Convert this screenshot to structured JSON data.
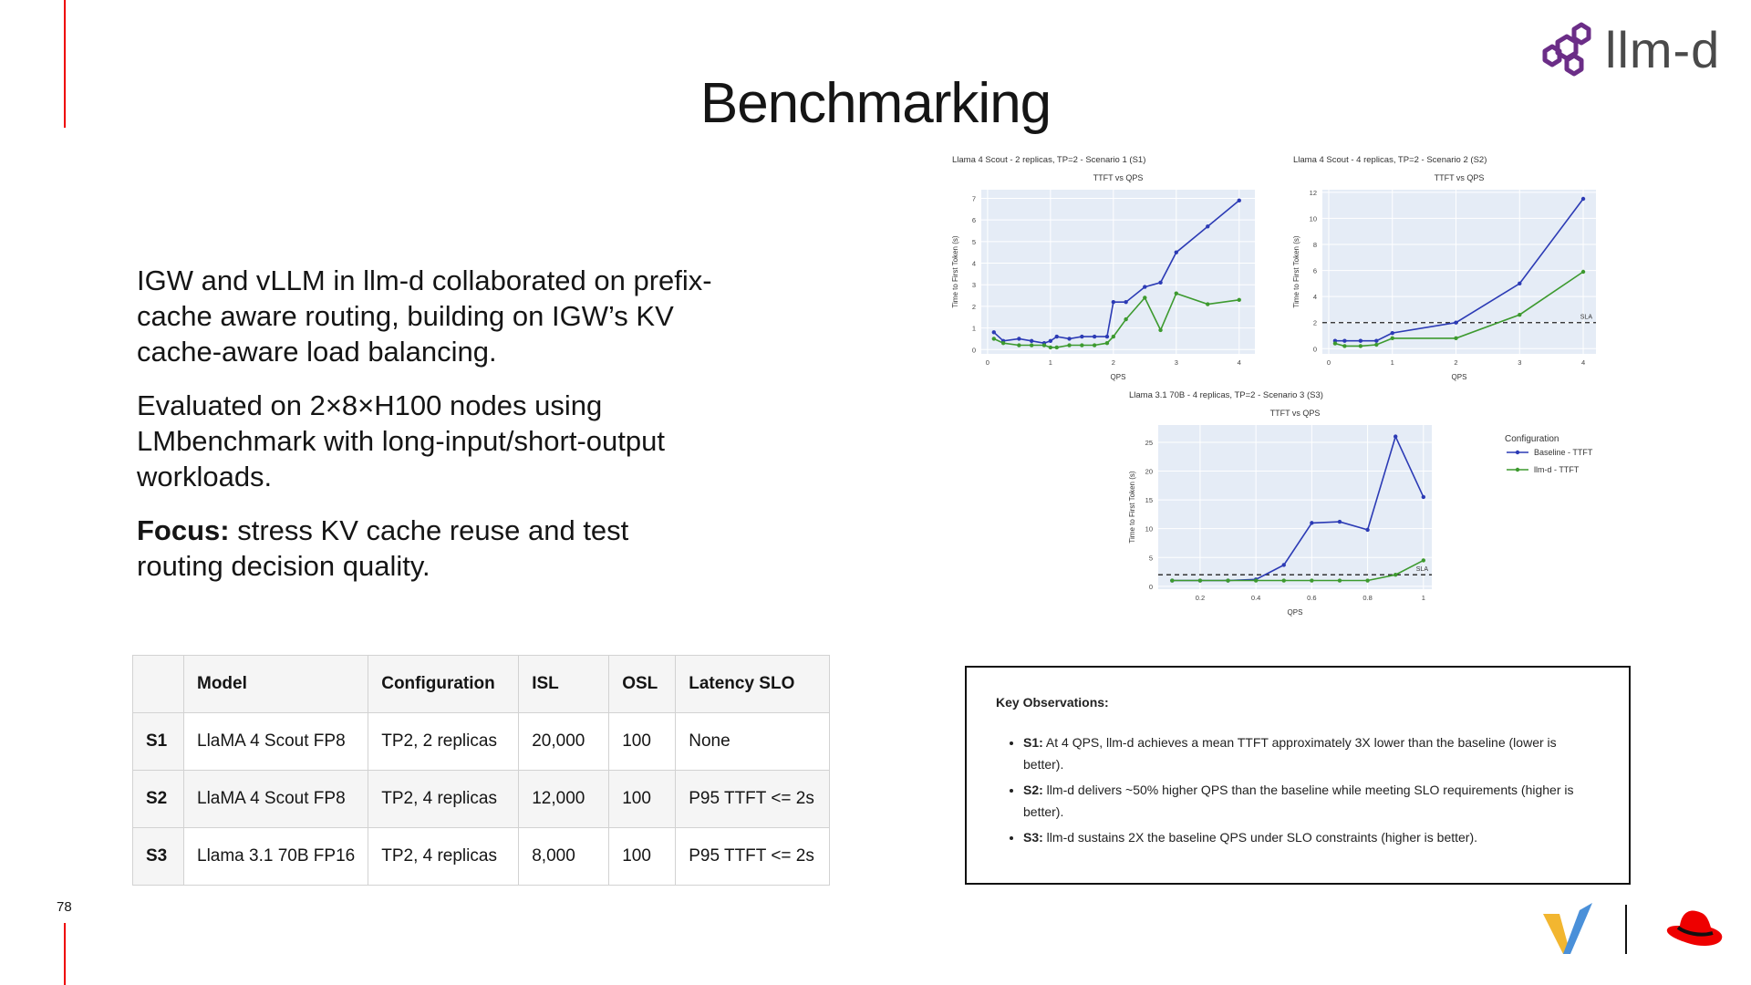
{
  "slide": {
    "title": "Benchmarking",
    "page_number": "78",
    "logo_text": "llm-d"
  },
  "body": {
    "p1": "IGW and vLLM in llm-d collaborated on prefix-cache aware routing, building on IGW’s KV cache-aware load balancing.",
    "p2": "Evaluated on 2×8×H100 nodes using LMbenchmark with long-input/short-output workloads.",
    "p3_label": "Focus:",
    "p3_text": " stress KV cache reuse and test routing decision quality."
  },
  "table": {
    "headers": [
      "",
      "Model",
      "Configuration",
      "ISL",
      "OSL",
      "Latency SLO"
    ],
    "rows": [
      [
        "S1",
        "LlaMA 4 Scout FP8",
        "TP2, 2 replicas",
        "20,000",
        "100",
        "None"
      ],
      [
        "S2",
        "LlaMA 4 Scout FP8",
        "TP2, 4 replicas",
        "12,000",
        "100",
        "P95 TTFT <= 2s"
      ],
      [
        "S3",
        "Llama 3.1 70B FP16",
        "TP2, 4 replicas",
        "8,000",
        "100",
        "P95 TTFT <= 2s"
      ]
    ]
  },
  "observations": {
    "heading": "Key Observations:",
    "items": [
      {
        "label": "S1:",
        "text": " At 4 QPS, llm-d achieves a mean TTFT approximately 3X lower than the baseline (lower is better)."
      },
      {
        "label": "S2:",
        "text": " llm-d delivers ~50% higher QPS than the baseline while meeting SLO requirements (higher is better)."
      },
      {
        "label": "S3:",
        "text": " llm-d sustains 2X the baseline QPS under SLO constraints (higher is better)."
      }
    ]
  },
  "legend": {
    "title": "Configuration",
    "items": [
      "Baseline - TTFT",
      "llm-d - TTFT"
    ]
  },
  "colors": {
    "accent_red": "#ee0000",
    "baseline": "#2c3bb5",
    "llmd": "#3d9a2f",
    "plot_bg": "#e5ecf6",
    "logo_purple": "#6b2d87"
  },
  "chart_data": [
    {
      "type": "line",
      "panel_title": "Llama 4 Scout - 2 replicas, TP=2 - Scenario 1 (S1)",
      "title": "TTFT vs QPS",
      "xlabel": "QPS",
      "ylabel": "Time to First Token (s)",
      "xlim": [
        -0.1,
        4.25
      ],
      "ylim": [
        -0.2,
        7.4
      ],
      "xticks": [
        0,
        1,
        2,
        3,
        4
      ],
      "yticks": [
        0,
        1,
        2,
        3,
        4,
        5,
        6,
        7
      ],
      "sla": null,
      "series": [
        {
          "name": "Baseline - TTFT",
          "x": [
            0.1,
            0.25,
            0.5,
            0.7,
            0.9,
            1.0,
            1.1,
            1.3,
            1.5,
            1.7,
            1.9,
            2.0,
            2.2,
            2.5,
            2.75,
            3.0,
            3.5,
            4.0
          ],
          "y": [
            0.8,
            0.4,
            0.5,
            0.4,
            0.3,
            0.4,
            0.6,
            0.5,
            0.6,
            0.6,
            0.6,
            2.2,
            2.2,
            2.9,
            3.1,
            4.5,
            5.7,
            6.9
          ]
        },
        {
          "name": "llm-d - TTFT",
          "x": [
            0.1,
            0.25,
            0.5,
            0.7,
            0.9,
            1.0,
            1.1,
            1.3,
            1.5,
            1.7,
            1.9,
            2.0,
            2.2,
            2.5,
            2.75,
            3.0,
            3.5,
            4.0
          ],
          "y": [
            0.5,
            0.3,
            0.2,
            0.2,
            0.2,
            0.1,
            0.1,
            0.2,
            0.2,
            0.2,
            0.3,
            0.6,
            1.4,
            2.4,
            0.9,
            2.6,
            2.1,
            2.3
          ]
        }
      ]
    },
    {
      "type": "line",
      "panel_title": "Llama 4 Scout - 4 replicas, TP=2 - Scenario 2 (S2)",
      "title": "TTFT vs QPS",
      "xlabel": "QPS",
      "ylabel": "Time to First Token (s)",
      "xlim": [
        -0.1,
        4.2
      ],
      "ylim": [
        -0.4,
        12.2
      ],
      "xticks": [
        0,
        1,
        2,
        3,
        4
      ],
      "yticks": [
        0,
        2,
        4,
        6,
        8,
        10,
        12
      ],
      "sla": 2,
      "sla_label": "SLA",
      "series": [
        {
          "name": "Baseline - TTFT",
          "x": [
            0.1,
            0.25,
            0.5,
            0.75,
            1.0,
            2.0,
            3.0,
            4.0
          ],
          "y": [
            0.6,
            0.6,
            0.6,
            0.6,
            1.2,
            2.0,
            5.0,
            11.5
          ]
        },
        {
          "name": "llm-d - TTFT",
          "x": [
            0.1,
            0.25,
            0.5,
            0.75,
            1.0,
            2.0,
            3.0,
            4.0
          ],
          "y": [
            0.4,
            0.2,
            0.2,
            0.3,
            0.8,
            0.8,
            2.6,
            5.9
          ]
        }
      ]
    },
    {
      "type": "line",
      "panel_title": "Llama 3.1 70B - 4 replicas, TP=2 - Scenario 3 (S3)",
      "title": "TTFT vs QPS",
      "xlabel": "QPS",
      "ylabel": "Time to First Token (s)",
      "xlim": [
        0.05,
        1.03
      ],
      "ylim": [
        -0.5,
        28
      ],
      "xticks": [
        0.2,
        0.4,
        0.6,
        0.8,
        1
      ],
      "yticks": [
        0,
        5,
        10,
        15,
        20,
        25
      ],
      "sla": 2,
      "sla_label": "SLA",
      "series": [
        {
          "name": "Baseline - TTFT",
          "x": [
            0.1,
            0.2,
            0.3,
            0.4,
            0.5,
            0.6,
            0.7,
            0.8,
            0.9,
            1.0
          ],
          "y": [
            1.0,
            1.0,
            1.0,
            1.2,
            3.7,
            11.0,
            11.2,
            9.8,
            26.0,
            15.5
          ]
        },
        {
          "name": "llm-d - TTFT",
          "x": [
            0.1,
            0.2,
            0.3,
            0.4,
            0.5,
            0.6,
            0.7,
            0.8,
            0.9,
            1.0
          ],
          "y": [
            1.0,
            1.0,
            1.0,
            1.0,
            1.0,
            1.0,
            1.0,
            1.0,
            2.0,
            4.5
          ]
        }
      ]
    }
  ]
}
